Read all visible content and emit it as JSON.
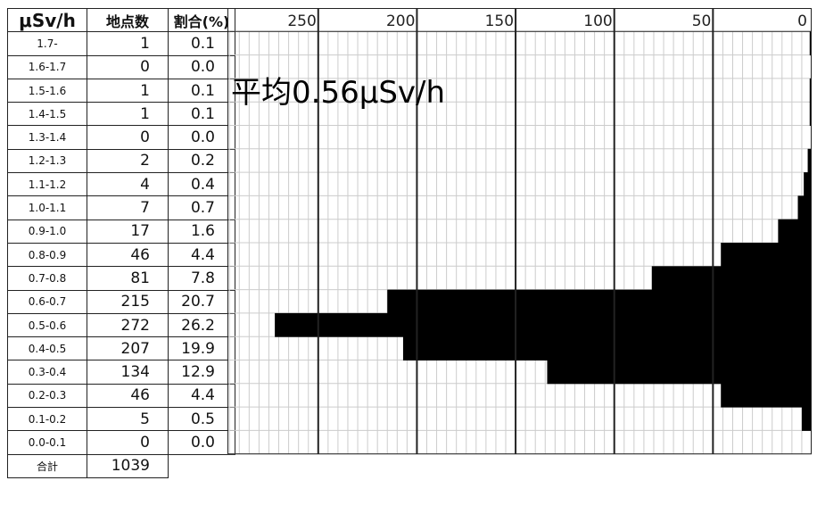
{
  "table": {
    "headers": {
      "range": "μSv/h",
      "count": "地点数",
      "pct": "割合(%)"
    },
    "rows": [
      {
        "range": "1.7-",
        "count": "1",
        "pct": "0.1"
      },
      {
        "range": "1.6-1.7",
        "count": "0",
        "pct": "0.0"
      },
      {
        "range": "1.5-1.6",
        "count": "1",
        "pct": "0.1"
      },
      {
        "range": "1.4-1.5",
        "count": "1",
        "pct": "0.1"
      },
      {
        "range": "1.3-1.4",
        "count": "0",
        "pct": "0.0"
      },
      {
        "range": "1.2-1.3",
        "count": "2",
        "pct": "0.2"
      },
      {
        "range": "1.1-1.2",
        "count": "4",
        "pct": "0.4"
      },
      {
        "range": "1.0-1.1",
        "count": "7",
        "pct": "0.7"
      },
      {
        "range": "0.9-1.0",
        "count": "17",
        "pct": "1.6"
      },
      {
        "range": "0.8-0.9",
        "count": "46",
        "pct": "4.4"
      },
      {
        "range": "0.7-0.8",
        "count": "81",
        "pct": "7.8"
      },
      {
        "range": "0.6-0.7",
        "count": "215",
        "pct": "20.7"
      },
      {
        "range": "0.5-0.6",
        "count": "272",
        "pct": "26.2"
      },
      {
        "range": "0.4-0.5",
        "count": "207",
        "pct": "19.9"
      },
      {
        "range": "0.3-0.4",
        "count": "134",
        "pct": "12.9"
      },
      {
        "range": "0.2-0.3",
        "count": "46",
        "pct": "4.4"
      },
      {
        "range": "0.1-0.2",
        "count": "5",
        "pct": "0.5"
      },
      {
        "range": "0.0-0.1",
        "count": "0",
        "pct": "0.0"
      }
    ],
    "total_label": "合計",
    "total_value": "1039"
  },
  "chart_data": {
    "type": "bar",
    "orientation": "horizontal",
    "x_direction": "reversed",
    "categories": [
      "1.7-",
      "1.6-1.7",
      "1.5-1.6",
      "1.4-1.5",
      "1.3-1.4",
      "1.2-1.3",
      "1.1-1.2",
      "1.0-1.1",
      "0.9-1.0",
      "0.8-0.9",
      "0.7-0.8",
      "0.6-0.7",
      "0.5-0.6",
      "0.4-0.5",
      "0.3-0.4",
      "0.2-0.3",
      "0.1-0.2",
      "0.0-0.1"
    ],
    "values": [
      1,
      0,
      1,
      1,
      0,
      2,
      4,
      7,
      17,
      46,
      81,
      215,
      272,
      207,
      134,
      46,
      5,
      0
    ],
    "x_ticks": [
      "250",
      "200",
      "150",
      "100",
      "50",
      "0"
    ],
    "xlim": [
      0,
      296
    ],
    "annotation": "平均0.56μSv/h",
    "grid": true,
    "bar_color": "#000000"
  }
}
